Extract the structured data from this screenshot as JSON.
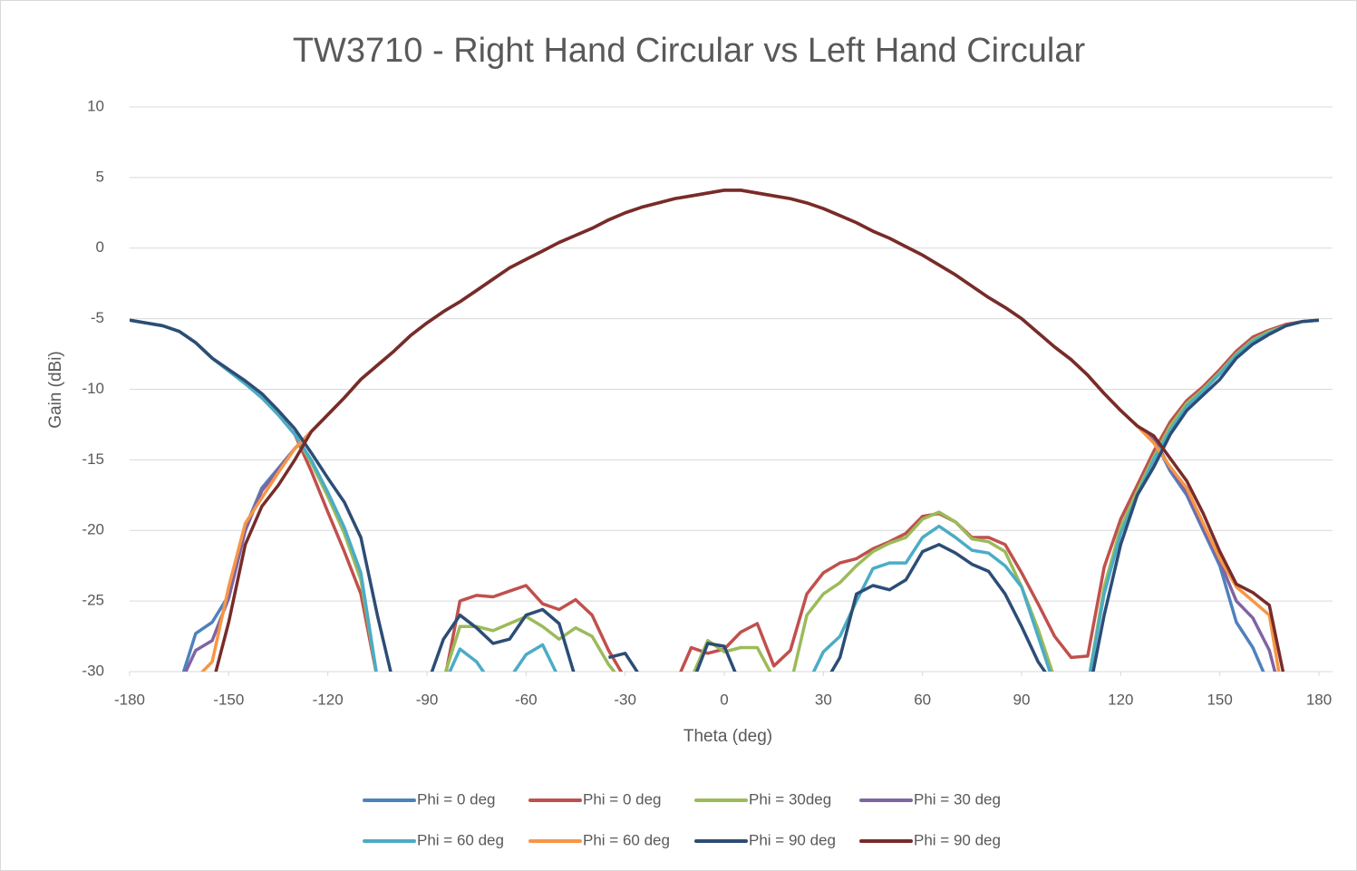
{
  "chart_data": {
    "type": "line",
    "title": "TW3710 - Right Hand Circular vs Left Hand Circular",
    "x_label": "Theta (deg)",
    "y_label": "Gain (dBi)",
    "xlim": [
      -180,
      180
    ],
    "ylim": [
      -30,
      10
    ],
    "xticks": [
      -180,
      -150,
      -120,
      -90,
      -60,
      -30,
      0,
      30,
      60,
      90,
      120,
      150,
      180
    ],
    "yticks": [
      -30,
      -25,
      -20,
      -15,
      -10,
      -5,
      0,
      5,
      10
    ],
    "grid": true,
    "legend": "bottom",
    "x": [
      -180,
      -175,
      -170,
      -165,
      -160,
      -155,
      -150,
      -145,
      -140,
      -135,
      -130,
      -125,
      -120,
      -115,
      -110,
      -105,
      -100,
      -95,
      -90,
      -85,
      -80,
      -75,
      -70,
      -65,
      -60,
      -55,
      -50,
      -45,
      -40,
      -35,
      -30,
      -25,
      -20,
      -15,
      -10,
      -5,
      0,
      5,
      10,
      15,
      20,
      25,
      30,
      35,
      40,
      45,
      50,
      55,
      60,
      65,
      70,
      75,
      80,
      85,
      90,
      95,
      100,
      105,
      110,
      115,
      120,
      125,
      130,
      135,
      140,
      145,
      150,
      155,
      160,
      165,
      170,
      175,
      180
    ],
    "series": [
      {
        "name": "Phi = 0 deg",
        "color": "#4f81bd",
        "values": [
          null,
          null,
          null,
          -31,
          -27.3,
          -26.5,
          -24.6,
          -19.8,
          -17.0,
          -15.6,
          -14.2,
          -13.0,
          -11.8,
          -10.6,
          -9.3,
          -8.3,
          -7.3,
          -6.2,
          -5.3,
          -4.5,
          -3.8,
          -3.0,
          -2.2,
          -1.4,
          -0.8,
          -0.2,
          0.4,
          0.9,
          1.4,
          2.0,
          2.5,
          2.9,
          3.2,
          3.5,
          3.7,
          3.9,
          4.1,
          4.1,
          3.9,
          3.7,
          3.5,
          3.2,
          2.8,
          2.3,
          1.8,
          1.2,
          0.7,
          0.1,
          -0.5,
          -1.2,
          -1.9,
          -2.7,
          -3.5,
          -4.2,
          -5.0,
          -6.0,
          -7.0,
          -7.9,
          -9.0,
          -10.3,
          -11.5,
          -12.6,
          -13.5,
          -15.8,
          -17.5,
          -20.0,
          -22.5,
          -26.5,
          -28.3,
          -31,
          null,
          null,
          null
        ]
      },
      {
        "name": "Phi = 0 deg",
        "color": "#c0504d",
        "values": [
          -5.1,
          -5.3,
          -5.5,
          -5.9,
          -6.7,
          -7.8,
          -8.7,
          -9.6,
          -10.6,
          -11.8,
          -13.2,
          -15.8,
          -18.7,
          -21.5,
          -24.5,
          -30.5,
          null,
          null,
          null,
          -31,
          -25,
          -24.6,
          -24.7,
          -24.3,
          -23.9,
          -25.2,
          -25.6,
          -24.9,
          -26,
          -28.5,
          -30.5,
          null,
          null,
          -31,
          -28.3,
          -28.7,
          -28.4,
          -27.2,
          -26.6,
          -29.6,
          -28.5,
          -24.5,
          -23,
          -22.3,
          -22,
          -21.3,
          -20.8,
          -20.2,
          -19,
          -18.8,
          -19.4,
          -20.5,
          -20.5,
          -21,
          -23,
          -25.2,
          -27.5,
          -29,
          -28.9,
          -22.6,
          -19.2,
          -16.8,
          -14.4,
          -12.3,
          -10.8,
          -9.8,
          -8.6,
          -7.3,
          -6.3,
          -5.8,
          -5.4,
          -5.2,
          -5.1
        ]
      },
      {
        "name": "Phi = 30deg",
        "color": "#9bbb59",
        "values": [
          -5.1,
          -5.3,
          -5.5,
          -5.9,
          -6.7,
          -7.8,
          -8.7,
          -9.6,
          -10.6,
          -11.8,
          -13.2,
          -15.2,
          -17.6,
          -20.2,
          -23.5,
          -30.5,
          null,
          null,
          null,
          -30.5,
          -26.8,
          -26.8,
          -27.1,
          -26.6,
          -26.1,
          -26.8,
          -27.7,
          -26.9,
          -27.5,
          -29.5,
          -31,
          null,
          null,
          null,
          -30.5,
          -27.8,
          -28.6,
          -28.3,
          -28.3,
          -30.5,
          -31,
          -26,
          -24.5,
          -23.7,
          -22.5,
          -21.5,
          -20.9,
          -20.5,
          -19.2,
          -18.7,
          -19.4,
          -20.6,
          -20.8,
          -21.5,
          -24,
          -27,
          -30.5,
          null,
          -31,
          -24,
          -19.8,
          -17.2,
          -14.8,
          -12.6,
          -11,
          -10,
          -8.8,
          -7.5,
          -6.5,
          -5.9,
          -5.5,
          -5.2,
          -5.1
        ]
      },
      {
        "name": "Phi = 30 deg",
        "color": "#8064a2",
        "values": [
          null,
          null,
          null,
          -31,
          -28.5,
          -27.8,
          -24.8,
          -20.0,
          -17.2,
          -15.7,
          -14.2,
          -13.0,
          -11.8,
          -10.6,
          -9.3,
          -8.3,
          -7.3,
          -6.2,
          -5.3,
          -4.5,
          -3.8,
          -3.0,
          -2.2,
          -1.4,
          -0.8,
          -0.2,
          0.4,
          0.9,
          1.4,
          2.0,
          2.5,
          2.9,
          3.2,
          3.5,
          3.7,
          3.9,
          4.1,
          4.1,
          3.9,
          3.7,
          3.5,
          3.2,
          2.8,
          2.3,
          1.8,
          1.2,
          0.7,
          0.1,
          -0.5,
          -1.2,
          -1.9,
          -2.7,
          -3.5,
          -4.2,
          -5.0,
          -6.0,
          -7.0,
          -7.9,
          -9.0,
          -10.3,
          -11.5,
          -12.6,
          -13.5,
          -15.6,
          -17.3,
          -19.8,
          -22.2,
          -25,
          -26.2,
          -28.5,
          -33,
          null,
          null
        ]
      },
      {
        "name": "Phi = 60 deg",
        "color": "#4bacc6",
        "values": [
          -5.1,
          -5.3,
          -5.5,
          -5.9,
          -6.7,
          -7.8,
          -8.7,
          -9.6,
          -10.6,
          -11.8,
          -13.2,
          -15.0,
          -17.3,
          -19.8,
          -23,
          -30.5,
          null,
          null,
          null,
          -31,
          -28.4,
          -29.3,
          -31,
          -30.5,
          -28.8,
          -28.1,
          -30.5,
          null,
          null,
          null,
          null,
          null,
          null,
          null,
          null,
          null,
          null,
          null,
          null,
          null,
          null,
          -31,
          -28.6,
          -27.5,
          -25,
          -22.7,
          -22.3,
          -22.3,
          -20.5,
          -19.7,
          -20.5,
          -21.4,
          -21.6,
          -22.5,
          -24,
          -27.5,
          -31,
          null,
          -31,
          -24.5,
          -20.2,
          -17.5,
          -15,
          -12.9,
          -11.2,
          -10.1,
          -8.9,
          -7.6,
          -6.6,
          -6.0,
          -5.5,
          -5.2,
          -5.1
        ]
      },
      {
        "name": "Phi = 60 deg",
        "color": "#f79646",
        "values": [
          null,
          null,
          null,
          null,
          -30.5,
          -29.3,
          -24.0,
          -19.5,
          -17.7,
          -15.9,
          -14.2,
          -13.0,
          -11.8,
          -10.6,
          -9.3,
          -8.3,
          -7.3,
          -6.2,
          -5.3,
          -4.5,
          -3.8,
          -3.0,
          -2.2,
          -1.4,
          -0.8,
          -0.2,
          0.4,
          0.9,
          1.4,
          2.0,
          2.5,
          2.9,
          3.2,
          3.5,
          3.7,
          3.9,
          4.1,
          4.1,
          3.9,
          3.7,
          3.5,
          3.2,
          2.8,
          2.3,
          1.8,
          1.2,
          0.7,
          0.1,
          -0.5,
          -1.2,
          -1.9,
          -2.7,
          -3.5,
          -4.2,
          -5.0,
          -6.0,
          -7.0,
          -7.9,
          -9.0,
          -10.3,
          -11.5,
          -12.6,
          -13.8,
          -15.5,
          -17.0,
          -19.5,
          -22,
          -24,
          -25,
          -26,
          -33,
          null,
          null
        ]
      },
      {
        "name": "Phi = 90 deg",
        "color": "#2c4d75",
        "values": [
          -5.1,
          -5.3,
          -5.5,
          -5.9,
          -6.7,
          -7.8,
          -8.6,
          -9.4,
          -10.3,
          -11.5,
          -12.8,
          -14.5,
          -16.3,
          -18,
          -20.5,
          -26,
          -31,
          null,
          -31,
          -27.7,
          -26,
          -26.9,
          -28,
          -27.7,
          -26,
          -25.6,
          -26.6,
          -30.5,
          null,
          -29,
          -28.7,
          -30.5,
          null,
          null,
          -31,
          -28,
          -28.2,
          -31,
          null,
          null,
          null,
          null,
          -31,
          -29,
          -24.5,
          -23.9,
          -24.2,
          -23.5,
          -21.5,
          -21,
          -21.6,
          -22.4,
          -22.9,
          -24.5,
          -26.8,
          -29.3,
          -31,
          null,
          -32,
          -26,
          -21,
          -17.5,
          -15.5,
          -13.2,
          -11.5,
          -10.4,
          -9.3,
          -7.8,
          -6.8,
          -6.1,
          -5.5,
          -5.2,
          -5.1
        ]
      },
      {
        "name": "Phi = 90 deg",
        "color": "#772c2a",
        "values": [
          null,
          null,
          null,
          null,
          null,
          -31,
          -26.5,
          -21,
          -18.3,
          -16.8,
          -15.0,
          -13.0,
          -11.8,
          -10.6,
          -9.3,
          -8.3,
          -7.3,
          -6.2,
          -5.3,
          -4.5,
          -3.8,
          -3.0,
          -2.2,
          -1.4,
          -0.8,
          -0.2,
          0.4,
          0.9,
          1.4,
          2.0,
          2.5,
          2.9,
          3.2,
          3.5,
          3.7,
          3.9,
          4.1,
          4.1,
          3.9,
          3.7,
          3.5,
          3.2,
          2.8,
          2.3,
          1.8,
          1.2,
          0.7,
          0.1,
          -0.5,
          -1.2,
          -1.9,
          -2.7,
          -3.5,
          -4.2,
          -5.0,
          -6.0,
          -7.0,
          -7.9,
          -9.0,
          -10.3,
          -11.5,
          -12.6,
          -13.3,
          -14.9,
          -16.5,
          -18.8,
          -21.5,
          -23.8,
          -24.4,
          -25.3,
          -31,
          null,
          null
        ]
      }
    ]
  }
}
